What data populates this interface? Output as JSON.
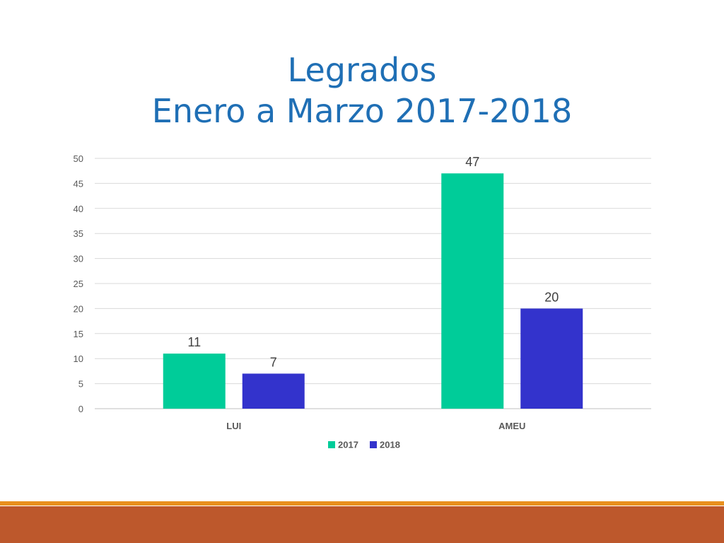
{
  "slide": {
    "title_line1": "Legrados",
    "title_line2": "Enero a Marzo 2017-2018"
  },
  "colors": {
    "title": "#1f6fb5",
    "series_2017": "#00cc99",
    "series_2018": "#3333cc",
    "footer_thin": "#e8901e",
    "footer_thick": "#bd582c"
  },
  "chart_data": {
    "type": "bar",
    "categories": [
      "LUI",
      "AMEU"
    ],
    "series": [
      {
        "name": "2017",
        "values": [
          11,
          47
        ]
      },
      {
        "name": "2018",
        "values": [
          7,
          20
        ]
      }
    ],
    "ylim": [
      0,
      50
    ],
    "yticks": [
      0,
      5,
      10,
      15,
      20,
      25,
      30,
      35,
      40,
      45,
      50
    ],
    "grid": true,
    "legend": "bottom",
    "data_labels": true
  }
}
